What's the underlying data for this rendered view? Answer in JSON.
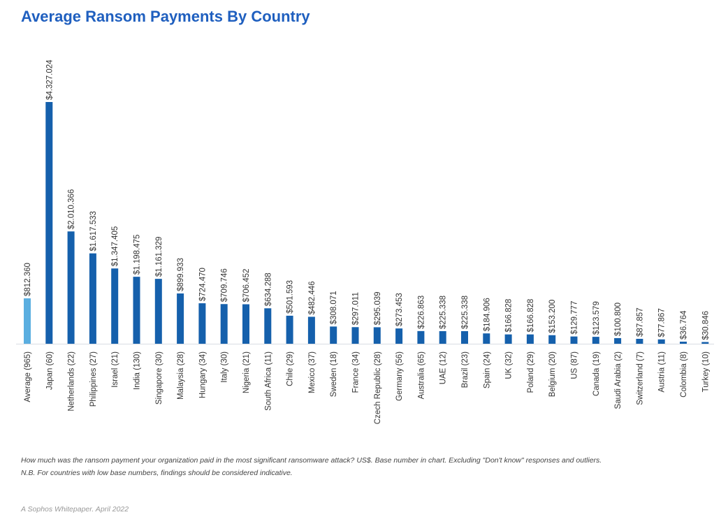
{
  "chart_data": {
    "type": "bar",
    "title": "Average Ransom Payments By Country",
    "xlabel": "",
    "ylabel": "",
    "ylim": [
      0,
      4327024
    ],
    "grid": false,
    "highlight_color": "#5aaee0",
    "bar_color": "#1560ac",
    "categories": [
      "Average (965)",
      "Japan (60)",
      "Netherlands (22)",
      "Philippines (27)",
      "Israel (21)",
      "India (130)",
      "Singapore (30)",
      "Malaysia (28)",
      "Hungary (34)",
      "Italy (30)",
      "Nigeria (21)",
      "South Africa (11)",
      "Chile (29)",
      "Mexico (37)",
      "Sweden (18)",
      "France (34)",
      "Czech Republic (28)",
      "Germany (56)",
      "Australia (65)",
      "UAE (12)",
      "Brazil (23)",
      "Spain (24)",
      "UK (32)",
      "Poland (29)",
      "Belgium (20)",
      "US (87)",
      "Canada (19)",
      "Saudi Arabia (2)",
      "Switzerland (7)",
      "Austria (11)",
      "Colombia (8)",
      "Turkey (10)"
    ],
    "values": [
      812360,
      4327024,
      2010366,
      1617533,
      1347405,
      1198475,
      1161329,
      899933,
      724470,
      709746,
      706452,
      634288,
      501593,
      482446,
      308071,
      297011,
      295039,
      273453,
      226863,
      225338,
      225338,
      184906,
      166828,
      166828,
      153200,
      129777,
      123579,
      100800,
      87857,
      77867,
      36764,
      30846
    ],
    "data_labels": [
      "$812.360",
      "$4.327.024",
      "$2.010.366",
      "$1.617.533",
      "$1.347.405",
      "$1.198.475",
      "$1.161.329",
      "$899.933",
      "$724.470",
      "$709.746",
      "$706.452",
      "$634.288",
      "$501.593",
      "$482.446",
      "$308.071",
      "$297.011",
      "$295.039",
      "$273.453",
      "$226.863",
      "$225.338",
      "$225.338",
      "$184.906",
      "$166.828",
      "$166.828",
      "$153.200",
      "$129.777",
      "$123.579",
      "$100.800",
      "$87.857",
      "$77.867",
      "$36.764",
      "$30.846"
    ]
  },
  "notes": {
    "question": "How much was the ransom payment your organization paid in the most significant ransomware attack? US$. Base number in chart. Excluding \"Don't know\" responses and outliers.",
    "nb": "N.B. For countries with low base numbers, findings should be considered indicative."
  },
  "footer": "A Sophos Whitepaper. April 2022"
}
